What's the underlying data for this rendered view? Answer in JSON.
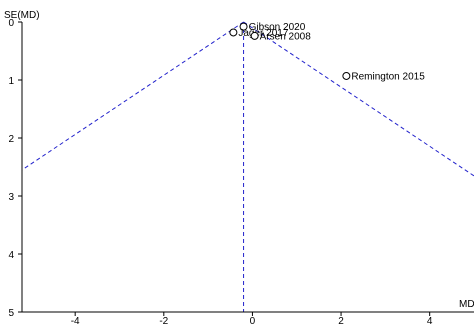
{
  "chart_data": {
    "type": "scatter",
    "subtype": "funnel-plot",
    "xlabel": "MD",
    "ylabel": "SE(MD)",
    "xlim": [
      -5.2,
      5.0
    ],
    "ylim": [
      5,
      0
    ],
    "y_inverted": true,
    "x_ticks": [
      "-4",
      "-2",
      "0",
      "2",
      "4"
    ],
    "x_tick_values": [
      -4,
      -2,
      0,
      2,
      4
    ],
    "y_ticks": [
      "0",
      "1",
      "2",
      "3",
      "4",
      "5"
    ],
    "y_tick_values": [
      0,
      1,
      2,
      3,
      4,
      5
    ],
    "pooled_estimate": -0.2,
    "funnel_z": 1.96,
    "funnel_color": "#2222cc",
    "studies": [
      {
        "name": "Gibson 2020",
        "x": -0.2,
        "y": 0.08
      },
      {
        "name": "Jager 2017",
        "x": -0.43,
        "y": 0.18
      },
      {
        "name": "Arsen 2008",
        "x": 0.05,
        "y": 0.24
      },
      {
        "name": "Remington 2015",
        "x": 2.12,
        "y": 0.93
      }
    ]
  }
}
